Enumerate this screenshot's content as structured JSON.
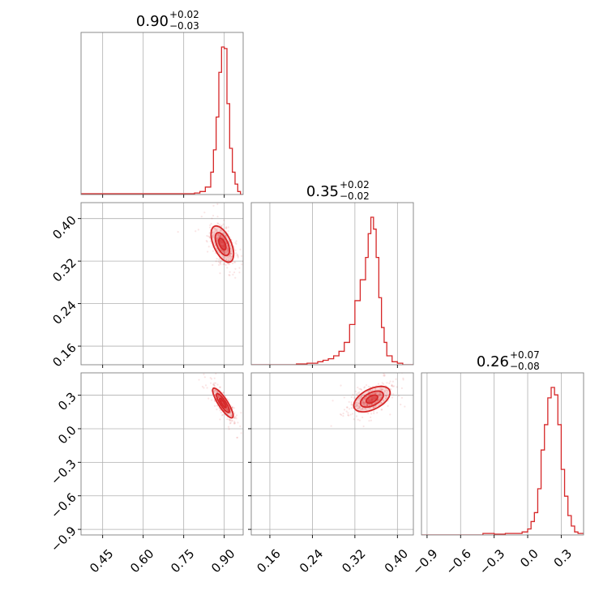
{
  "chart_data": {
    "type": "corner",
    "color": "#d62728",
    "grid": true,
    "parameters": [
      {
        "index": 0,
        "title_value": "0.90",
        "title_plus": "+0.02",
        "title_minus": "−0.03",
        "range": [
          0.37,
          0.97
        ],
        "ticks": [
          0.45,
          0.6,
          0.75,
          0.9
        ],
        "tick_labels": [
          "0.45",
          "0.60",
          "0.75",
          "0.90"
        ]
      },
      {
        "index": 1,
        "title_value": "0.35",
        "title_plus": "+0.02",
        "title_minus": "−0.02",
        "range": [
          0.125,
          0.43
        ],
        "ticks": [
          0.16,
          0.24,
          0.32,
          0.4
        ],
        "tick_labels": [
          "0.16",
          "0.24",
          "0.32",
          "0.40"
        ]
      },
      {
        "index": 2,
        "title_value": "0.26",
        "title_plus": "+0.07",
        "title_minus": "−0.08",
        "range": [
          -0.95,
          0.5
        ],
        "ticks": [
          -0.9,
          -0.6,
          -0.3,
          0.0,
          0.3
        ],
        "tick_labels": [
          "−0.9",
          "−0.6",
          "−0.3",
          "0.0",
          "0.3"
        ]
      }
    ],
    "histograms": [
      {
        "param": 0,
        "bins": [
          0.37,
          0.4,
          0.43,
          0.46,
          0.49,
          0.52,
          0.55,
          0.58,
          0.61,
          0.64,
          0.67,
          0.7,
          0.73,
          0.76,
          0.79,
          0.81,
          0.83,
          0.85,
          0.86,
          0.87,
          0.88,
          0.89,
          0.9,
          0.91,
          0.92,
          0.93,
          0.94,
          0.95,
          0.96,
          0.97
        ],
        "counts": [
          0.005,
          0.005,
          0.005,
          0.005,
          0.005,
          0.005,
          0.005,
          0.005,
          0.005,
          0.005,
          0.005,
          0.005,
          0.005,
          0.005,
          0.01,
          0.02,
          0.05,
          0.15,
          0.3,
          0.52,
          0.82,
          0.99,
          0.98,
          0.61,
          0.31,
          0.15,
          0.07,
          0.02,
          0.0
        ]
      },
      {
        "param": 1,
        "bins": [
          0.125,
          0.21,
          0.22,
          0.23,
          0.24,
          0.25,
          0.26,
          0.27,
          0.28,
          0.29,
          0.3,
          0.31,
          0.32,
          0.33,
          0.34,
          0.345,
          0.35,
          0.355,
          0.36,
          0.365,
          0.37,
          0.375,
          0.38,
          0.39,
          0.4,
          0.41,
          0.43
        ],
        "counts": [
          0.0,
          0.005,
          0.005,
          0.01,
          0.01,
          0.02,
          0.03,
          0.04,
          0.06,
          0.09,
          0.15,
          0.27,
          0.43,
          0.57,
          0.72,
          0.88,
          0.99,
          0.91,
          0.72,
          0.45,
          0.25,
          0.15,
          0.06,
          0.02,
          0.01,
          0.0
        ]
      },
      {
        "param": 2,
        "bins": [
          -0.95,
          -0.4,
          -0.3,
          -0.2,
          -0.1,
          -0.05,
          0.0,
          0.03,
          0.06,
          0.09,
          0.12,
          0.15,
          0.18,
          0.21,
          0.24,
          0.27,
          0.3,
          0.33,
          0.36,
          0.39,
          0.42,
          0.45,
          0.5
        ],
        "counts": [
          0.0,
          0.01,
          0.005,
          0.01,
          0.01,
          0.02,
          0.04,
          0.09,
          0.15,
          0.31,
          0.57,
          0.74,
          0.92,
          0.99,
          0.94,
          0.74,
          0.44,
          0.26,
          0.13,
          0.06,
          0.02,
          0.01
        ]
      }
    ],
    "pairs": [
      {
        "x_param": 0,
        "y_param": 1,
        "center": [
          0.893,
          0.352
        ],
        "sigma": [
          0.022,
          0.018
        ],
        "rho": -0.55,
        "levels": [
          0.6,
          1.2,
          1.9
        ]
      },
      {
        "x_param": 0,
        "y_param": 2,
        "center": [
          0.895,
          0.23
        ],
        "sigma": [
          0.02,
          0.07
        ],
        "rho": -0.85,
        "levels": [
          0.6,
          1.2,
          1.9
        ]
      },
      {
        "x_param": 1,
        "y_param": 2,
        "center": [
          0.352,
          0.265
        ],
        "sigma": [
          0.018,
          0.06
        ],
        "rho": 0.5,
        "levels": [
          0.6,
          1.2,
          1.9
        ]
      }
    ]
  }
}
